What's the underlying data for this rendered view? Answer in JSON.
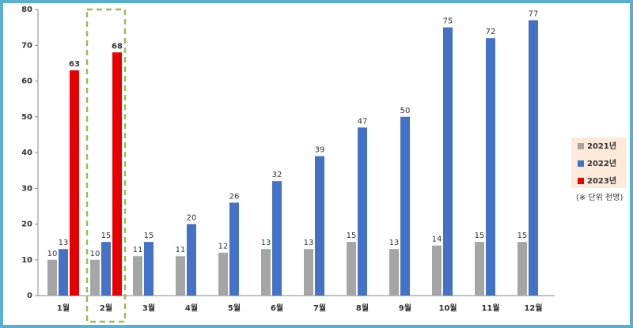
{
  "chart_data": {
    "type": "bar",
    "categories": [
      "1월",
      "2월",
      "3월",
      "4월",
      "5월",
      "6월",
      "7월",
      "8월",
      "9월",
      "10월",
      "11월",
      "12월"
    ],
    "series": [
      {
        "name": "2021년",
        "color": "#a5a5a5",
        "values": [
          10,
          10,
          11,
          11,
          12,
          13,
          13,
          15,
          13,
          14,
          15,
          15
        ]
      },
      {
        "name": "2022년",
        "color": "#4472c4",
        "values": [
          13,
          15,
          15,
          20,
          26,
          32,
          39,
          47,
          50,
          75,
          72,
          77
        ]
      },
      {
        "name": "2023년",
        "color": "#e60000",
        "values": [
          63,
          68,
          null,
          null,
          null,
          null,
          null,
          null,
          null,
          null,
          null,
          null
        ]
      }
    ],
    "ylim": [
      0,
      80
    ],
    "yticks": [
      0,
      10,
      20,
      30,
      40,
      50,
      60,
      70,
      80
    ],
    "grid": false,
    "legend": "right",
    "unit_note": "(※ 단위 천명)"
  }
}
